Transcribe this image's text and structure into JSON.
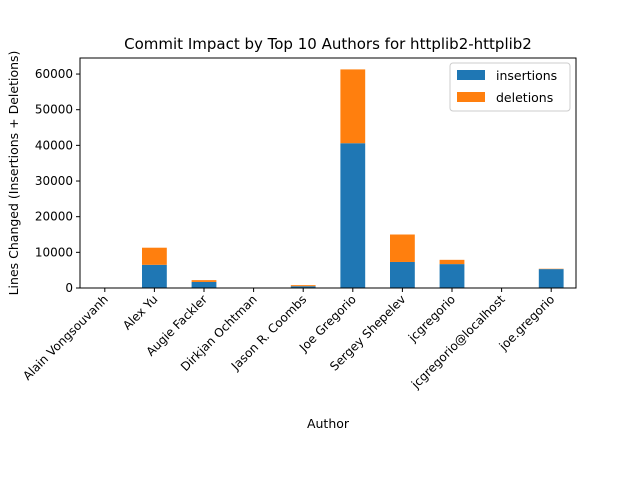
{
  "chart_data": {
    "type": "bar",
    "stacked": true,
    "title": "Commit Impact by Top 10 Authors for httplib2-httplib2",
    "xlabel": "Author",
    "ylabel": "Lines Changed (Insertions + Deletions)",
    "ylim": [
      0,
      64500
    ],
    "yticks": [
      0,
      10000,
      20000,
      30000,
      40000,
      50000,
      60000
    ],
    "categories": [
      "Alain Vongsouvanh",
      "Alex Yu",
      "Augie Fackler",
      "Dirkjan Ochtman",
      "Jason R. Coombs",
      "Joe Gregorio",
      "Sergey Shepelev",
      "jcgregorio",
      "jcgregorio@localhost",
      "joe.gregorio"
    ],
    "series": [
      {
        "name": "insertions",
        "color": "#1f77b4",
        "values": [
          10,
          6500,
          1700,
          20,
          500,
          40600,
          7300,
          6700,
          50,
          5300
        ]
      },
      {
        "name": "deletions",
        "color": "#ff7f0e",
        "values": [
          5,
          4800,
          500,
          10,
          300,
          20700,
          7700,
          1200,
          10,
          100
        ]
      }
    ],
    "legend_position": "top-right",
    "grid": false
  }
}
